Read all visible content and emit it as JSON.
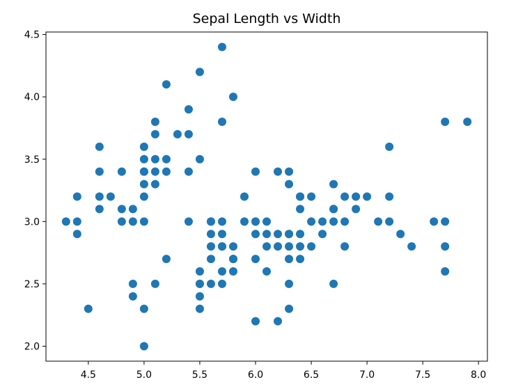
{
  "chart_data": {
    "type": "scatter",
    "title": "Sepal Length vs Width",
    "xlabel": "",
    "ylabel": "",
    "xlim": [
      4.12,
      8.08
    ],
    "ylim": [
      1.88,
      4.52
    ],
    "xticks": [
      4.5,
      5.0,
      5.5,
      6.0,
      6.5,
      7.0,
      7.5,
      8.0
    ],
    "yticks": [
      2.0,
      2.5,
      3.0,
      3.5,
      4.0,
      4.5
    ],
    "xtick_labels": [
      "4.5",
      "5.0",
      "5.5",
      "6.0",
      "6.5",
      "7.0",
      "7.5",
      "8.0"
    ],
    "ytick_labels": [
      "2.0",
      "2.5",
      "3.0",
      "3.5",
      "4.0",
      "4.5"
    ],
    "grid": false,
    "marker_color": "#1f77b4",
    "series": [
      {
        "x": [
          4.3,
          4.4,
          4.4,
          4.4,
          4.5,
          4.6,
          4.6,
          4.6,
          4.6,
          4.7,
          4.8,
          4.8,
          4.8,
          4.9,
          4.9,
          4.9,
          4.9,
          5.0,
          5.0,
          5.0,
          5.0,
          5.0,
          5.0,
          5.0,
          5.0,
          5.0,
          5.1,
          5.1,
          5.1,
          5.1,
          5.1,
          5.1,
          5.2,
          5.2,
          5.2,
          5.2,
          5.3,
          5.4,
          5.4,
          5.4,
          5.4,
          5.5,
          5.5,
          5.5,
          5.5,
          5.5,
          5.5,
          5.5,
          5.6,
          5.6,
          5.6,
          5.6,
          5.6,
          5.6,
          5.7,
          5.7,
          5.7,
          5.7,
          5.7,
          5.7,
          5.7,
          5.7,
          5.8,
          5.8,
          5.8,
          5.8,
          5.8,
          5.9,
          5.9,
          6.0,
          6.0,
          6.0,
          6.0,
          6.0,
          6.0,
          6.1,
          6.1,
          6.1,
          6.1,
          6.2,
          6.2,
          6.2,
          6.2,
          6.3,
          6.3,
          6.3,
          6.3,
          6.3,
          6.3,
          6.3,
          6.3,
          6.4,
          6.4,
          6.4,
          6.4,
          6.4,
          6.4,
          6.5,
          6.5,
          6.5,
          6.6,
          6.6,
          6.7,
          6.7,
          6.7,
          6.7,
          6.7,
          6.8,
          6.8,
          6.8,
          6.9,
          6.9,
          7.0,
          7.1,
          7.2,
          7.2,
          7.2,
          7.3,
          7.4,
          7.6,
          7.7,
          7.7,
          7.7,
          7.7,
          7.9
        ],
        "y": [
          3.0,
          3.2,
          3.0,
          2.9,
          2.3,
          3.6,
          3.4,
          3.2,
          3.1,
          3.2,
          3.4,
          3.1,
          3.0,
          3.1,
          3.0,
          2.5,
          2.4,
          3.6,
          3.5,
          3.4,
          3.3,
          3.2,
          3.0,
          2.3,
          2.0,
          3.4,
          3.8,
          3.7,
          3.5,
          3.4,
          3.3,
          2.5,
          4.1,
          3.5,
          3.4,
          2.7,
          3.7,
          3.9,
          3.7,
          3.4,
          3.0,
          4.2,
          3.5,
          2.6,
          2.5,
          2.4,
          2.3,
          2.5,
          3.0,
          2.9,
          2.8,
          2.7,
          2.5,
          3.0,
          4.4,
          3.8,
          3.0,
          2.9,
          2.8,
          2.6,
          2.5,
          2.8,
          4.0,
          2.8,
          2.7,
          2.6,
          2.7,
          3.2,
          3.0,
          3.4,
          3.0,
          2.9,
          2.7,
          2.2,
          3.0,
          3.0,
          2.9,
          2.8,
          2.6,
          3.4,
          2.9,
          2.8,
          2.2,
          3.4,
          3.3,
          2.9,
          2.8,
          2.7,
          2.5,
          2.3,
          2.9,
          3.2,
          3.1,
          2.9,
          2.8,
          2.7,
          3.2,
          3.2,
          3.0,
          2.8,
          3.0,
          2.9,
          3.3,
          3.1,
          3.0,
          2.5,
          3.1,
          3.2,
          3.0,
          2.8,
          3.2,
          3.1,
          3.2,
          3.0,
          3.6,
          3.2,
          3.0,
          2.9,
          2.8,
          3.0,
          3.8,
          3.0,
          2.8,
          2.6,
          3.8
        ]
      }
    ]
  }
}
